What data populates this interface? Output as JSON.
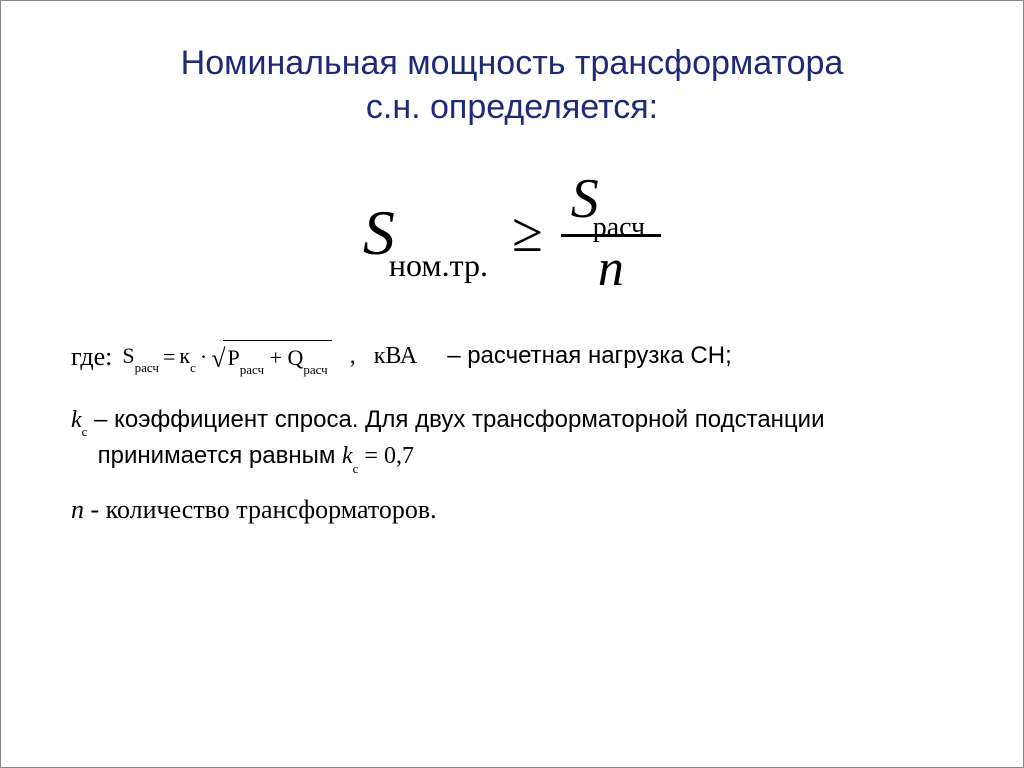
{
  "title": {
    "line1": "Номинальная мощность трансформатора",
    "line2": "с.н. определяется:",
    "color": "#1e2a78",
    "fontsize": 34
  },
  "main_formula": {
    "lhs_var": "S",
    "lhs_sub": "ном.тр.",
    "operator": "≥",
    "rhs_num_var": "S",
    "rhs_num_sub": "расч",
    "rhs_den": "n",
    "color": "#000000"
  },
  "where": {
    "label": "где:",
    "srasc_lhs_var": "S",
    "srasc_lhs_sub": "расч",
    "eq": "=",
    "kc_var": "к",
    "kc_sub": "с",
    "dot": "·",
    "sqrt_p_var": "P",
    "sqrt_p_sub": "расч",
    "plus": "+",
    "sqrt_q_var": "Q",
    "sqrt_q_sub": "расч",
    "comma": ",",
    "unit": "кВА",
    "desc": "– расчетная нагрузка СН;"
  },
  "kc_line": {
    "kc_var": "k",
    "kc_sub": "с",
    "text1": " – коэффициент спроса. Для двух трансформаторной подстанции",
    "text2": "принимается равным ",
    "value_var": "k",
    "value_sub": "с",
    "value_eq": " = 0,7"
  },
  "n_line": {
    "var": "n",
    "text": " - количество трансформаторов."
  }
}
